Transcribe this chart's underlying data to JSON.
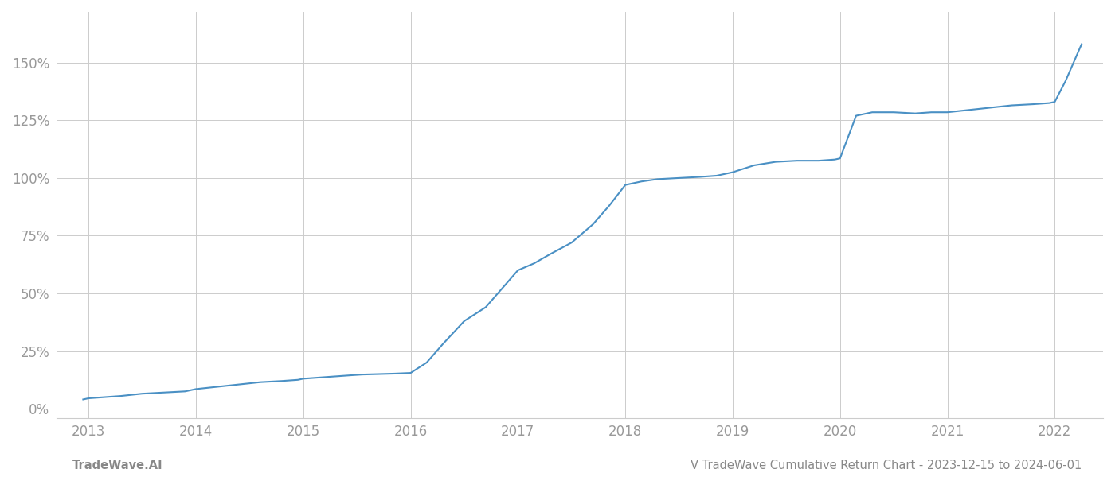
{
  "x_values": [
    2012.95,
    2013.0,
    2013.15,
    2013.3,
    2013.5,
    2013.7,
    2013.9,
    2014.0,
    2014.2,
    2014.4,
    2014.6,
    2014.8,
    2014.95,
    2015.0,
    2015.15,
    2015.3,
    2015.45,
    2015.55,
    2015.7,
    2015.85,
    2016.0,
    2016.15,
    2016.3,
    2016.5,
    2016.7,
    2016.85,
    2017.0,
    2017.15,
    2017.3,
    2017.5,
    2017.7,
    2017.85,
    2018.0,
    2018.15,
    2018.3,
    2018.5,
    2018.7,
    2018.85,
    2019.0,
    2019.2,
    2019.4,
    2019.6,
    2019.8,
    2019.95,
    2020.0,
    2020.15,
    2020.3,
    2020.5,
    2020.7,
    2020.85,
    2021.0,
    2021.2,
    2021.4,
    2021.6,
    2021.8,
    2021.95,
    2022.0,
    2022.1,
    2022.25
  ],
  "y_values": [
    0.04,
    0.045,
    0.05,
    0.055,
    0.065,
    0.07,
    0.075,
    0.085,
    0.095,
    0.105,
    0.115,
    0.12,
    0.125,
    0.13,
    0.135,
    0.14,
    0.145,
    0.148,
    0.15,
    0.152,
    0.155,
    0.2,
    0.28,
    0.38,
    0.44,
    0.52,
    0.6,
    0.63,
    0.67,
    0.72,
    0.8,
    0.88,
    0.97,
    0.985,
    0.995,
    1.0,
    1.005,
    1.01,
    1.025,
    1.055,
    1.07,
    1.075,
    1.075,
    1.08,
    1.085,
    1.27,
    1.285,
    1.285,
    1.28,
    1.285,
    1.285,
    1.295,
    1.305,
    1.315,
    1.32,
    1.325,
    1.33,
    1.42,
    1.58
  ],
  "line_color": "#4a90c4",
  "line_width": 1.5,
  "background_color": "#ffffff",
  "grid_color": "#cccccc",
  "grid_linewidth": 0.7,
  "tick_color": "#999999",
  "x_ticks": [
    2013,
    2014,
    2015,
    2016,
    2017,
    2018,
    2019,
    2020,
    2021,
    2022
  ],
  "y_ticks": [
    0.0,
    0.25,
    0.5,
    0.75,
    1.0,
    1.25,
    1.5
  ],
  "y_tick_labels": [
    "0%",
    "25%",
    "50%",
    "75%",
    "100%",
    "125%",
    "150%"
  ],
  "xlim": [
    2012.7,
    2022.45
  ],
  "ylim": [
    -0.04,
    1.72
  ],
  "footer_left": "TradeWave.AI",
  "footer_right": "V TradeWave Cumulative Return Chart - 2023-12-15 to 2024-06-01",
  "footer_color": "#888888",
  "footer_fontsize": 10.5
}
